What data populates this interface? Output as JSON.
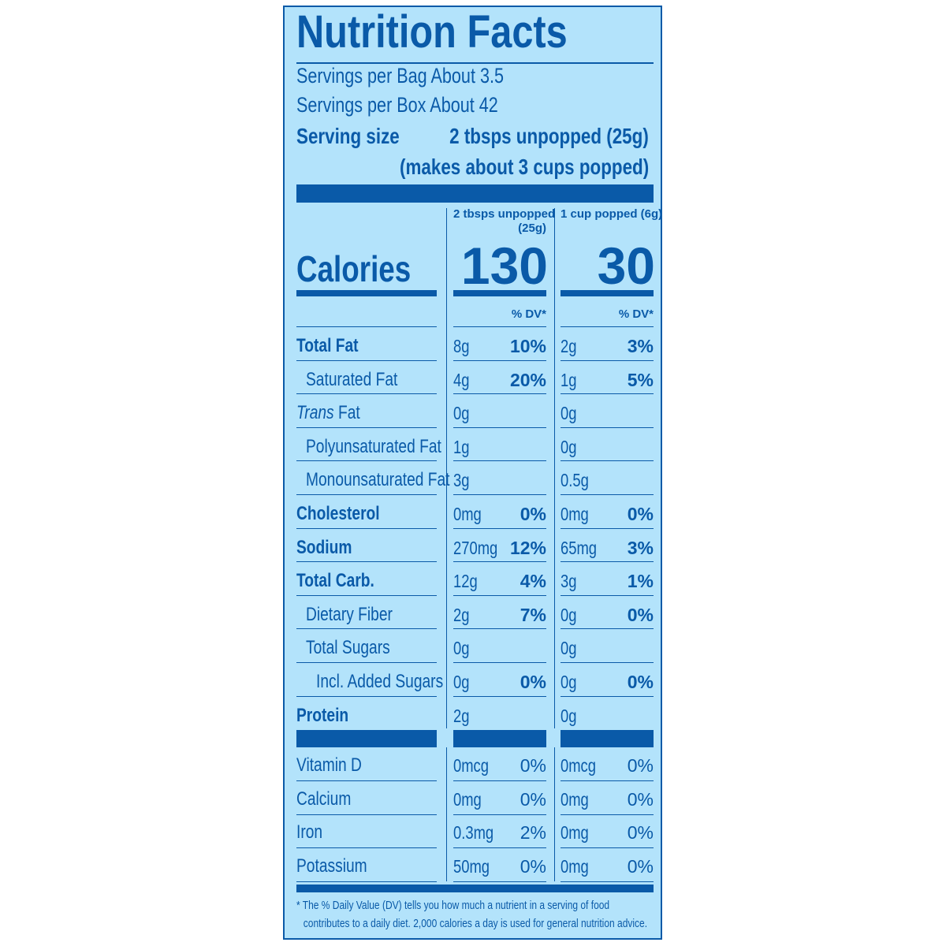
{
  "colors": {
    "background": "#b3e3fb",
    "ink": "#0a5aa8"
  },
  "label": {
    "title": "Nutrition Facts",
    "servings_bag": "Servings per Bag About 3.5",
    "servings_box": "Servings per Box About 42",
    "serving_size_label": "Serving size",
    "serving_size_value": "2 tbsps unpopped (25g)",
    "serving_size_note": "(makes about 3 cups popped)",
    "columns": {
      "col1_header_line1": "2 tbsps unpopped",
      "col1_header_line2": "(25g)",
      "col2_header": "1 cup popped (6g)"
    },
    "calories_label": "Calories",
    "calories_col1": "130",
    "calories_col2": "30",
    "dv_header": "% DV*",
    "nutrients": [
      {
        "name": "Total Fat",
        "c1": "8g",
        "p1": "10%",
        "c2": "2g",
        "p2": "3%"
      },
      {
        "name": "Saturated Fat",
        "c1": "4g",
        "p1": "20%",
        "c2": "1g",
        "p2": "5%"
      },
      {
        "name_italic": "Trans",
        "name": " Fat",
        "c1": "0g",
        "p1": "",
        "c2": "0g",
        "p2": ""
      },
      {
        "name": "Polyunsaturated Fat",
        "c1": "1g",
        "p1": "",
        "c2": "0g",
        "p2": ""
      },
      {
        "name": "Monounsaturated Fat",
        "c1": "3g",
        "p1": "",
        "c2": "0.5g",
        "p2": ""
      },
      {
        "name": "Cholesterol",
        "c1": "0mg",
        "p1": "0%",
        "c2": "0mg",
        "p2": "0%"
      },
      {
        "name": "Sodium",
        "c1": "270mg",
        "p1": "12%",
        "c2": "65mg",
        "p2": "3%"
      },
      {
        "name": "Total Carb.",
        "c1": "12g",
        "p1": "4%",
        "c2": "3g",
        "p2": "1%"
      },
      {
        "name": "Dietary Fiber",
        "c1": "2g",
        "p1": "7%",
        "c2": "0g",
        "p2": "0%"
      },
      {
        "name": "Total Sugars",
        "c1": "0g",
        "p1": "",
        "c2": "0g",
        "p2": ""
      },
      {
        "name": "Incl. Added Sugars",
        "c1": "0g",
        "p1": "0%",
        "c2": "0g",
        "p2": "0%"
      },
      {
        "name": "Protein",
        "c1": "2g",
        "p1": "",
        "c2": "0g",
        "p2": ""
      }
    ],
    "vitamins": [
      {
        "name": "Vitamin D",
        "c1": "0mcg",
        "p1": "0%",
        "c2": "0mcg",
        "p2": "0%"
      },
      {
        "name": "Calcium",
        "c1": "0mg",
        "p1": "0%",
        "c2": "0mg",
        "p2": "0%"
      },
      {
        "name": "Iron",
        "c1": "0.3mg",
        "p1": "2%",
        "c2": "0mg",
        "p2": "0%"
      },
      {
        "name": "Potassium",
        "c1": "50mg",
        "p1": "0%",
        "c2": "0mg",
        "p2": "0%"
      }
    ],
    "footnote_line1": "* The % Daily Value (DV) tells you how much a nutrient in a serving of food",
    "footnote_line2": "contributes to a daily diet. 2,000 calories a day is used for general nutrition advice."
  }
}
